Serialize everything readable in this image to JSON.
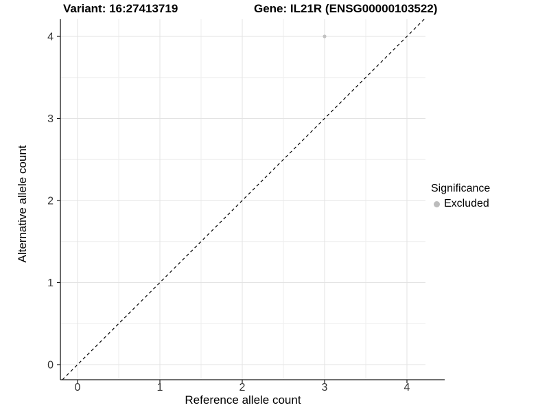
{
  "titles": {
    "variant": "Variant: 16:27413719",
    "gene": "Gene: IL21R (ENSG00000103522)"
  },
  "chart_data": {
    "type": "scatter",
    "title": "Variant: 16:27413719    Gene: IL21R (ENSG00000103522)",
    "xlabel": "Reference allele count",
    "ylabel": "Alternative allele count",
    "x_ticks": [
      0,
      1,
      2,
      3,
      4
    ],
    "y_ticks": [
      0,
      1,
      2,
      3,
      4
    ],
    "xlim": [
      -0.21,
      4.23
    ],
    "ylim": [
      -0.19,
      4.21
    ],
    "grid": "major+minor",
    "points": [
      {
        "x": 3,
        "y": 4,
        "significance": "Excluded"
      }
    ],
    "reference_line": {
      "type": "identity y=x",
      "style": "dashed",
      "color": "#000000"
    },
    "legend": {
      "title": "Significance",
      "position": "right",
      "items": [
        {
          "label": "Excluded",
          "color": "#bcbcbc"
        }
      ]
    },
    "colors": {
      "point": "#c2c2c2",
      "grid_major": "#e3e3e3",
      "grid_minor": "#eeeeee",
      "axis": "#1a1a1a",
      "tick_text": "#333333"
    }
  }
}
